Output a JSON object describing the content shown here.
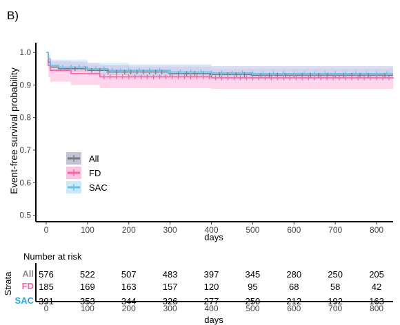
{
  "panel_label": "B)",
  "chart_data": {
    "type": "line",
    "subtype": "kaplan-meier",
    "xlabel": "days",
    "ylabel": "Event-free survival probability",
    "xlim": [
      -25,
      840
    ],
    "ylim": [
      0.48,
      1.03
    ],
    "xticks": [
      0,
      100,
      200,
      300,
      400,
      500,
      600,
      700,
      800
    ],
    "yticks": [
      0.5,
      0.6,
      0.7,
      0.8,
      0.9,
      1.0
    ],
    "ytick_labels": [
      "0.5",
      "0.6",
      "0.7",
      "0.8",
      "0.9",
      "1.0"
    ],
    "grid": false,
    "legend_position": "center-left",
    "series": [
      {
        "name": "All",
        "color": "#7a7a7a",
        "band_color": "#b4b4cc",
        "points": [
          [
            0,
            1.0
          ],
          [
            5,
            0.97
          ],
          [
            10,
            0.955
          ],
          [
            30,
            0.95
          ],
          [
            100,
            0.945
          ],
          [
            150,
            0.94
          ],
          [
            300,
            0.935
          ],
          [
            400,
            0.932
          ],
          [
            500,
            0.93
          ],
          [
            840,
            0.93
          ]
        ],
        "ci_low": [
          [
            0,
            1.0
          ],
          [
            5,
            0.955
          ],
          [
            10,
            0.94
          ],
          [
            100,
            0.93
          ],
          [
            200,
            0.925
          ],
          [
            400,
            0.92
          ],
          [
            840,
            0.918
          ]
        ],
        "ci_high": [
          [
            0,
            1.0
          ],
          [
            5,
            0.985
          ],
          [
            10,
            0.972
          ],
          [
            100,
            0.962
          ],
          [
            200,
            0.956
          ],
          [
            400,
            0.95
          ],
          [
            840,
            0.945
          ]
        ],
        "censor_x": [
          70,
          95,
          110,
          130,
          150,
          170,
          190,
          205,
          220,
          235,
          250,
          265,
          280,
          300,
          320,
          340,
          360,
          380,
          400,
          420,
          440,
          460,
          480,
          500,
          520,
          540,
          560,
          580,
          600,
          620,
          640,
          660,
          680,
          700,
          720,
          740,
          760,
          780,
          800,
          820
        ]
      },
      {
        "name": "FD",
        "color": "#ff5fa6",
        "band_color": "#ffb3dc",
        "points": [
          [
            0,
            1.0
          ],
          [
            5,
            0.96
          ],
          [
            10,
            0.945
          ],
          [
            60,
            0.935
          ],
          [
            130,
            0.925
          ],
          [
            400,
            0.922
          ],
          [
            840,
            0.92
          ]
        ],
        "ci_low": [
          [
            0,
            1.0
          ],
          [
            5,
            0.925
          ],
          [
            10,
            0.91
          ],
          [
            60,
            0.9
          ],
          [
            130,
            0.89
          ],
          [
            400,
            0.888
          ],
          [
            840,
            0.885
          ]
        ],
        "ci_high": [
          [
            0,
            1.0
          ],
          [
            5,
            0.99
          ],
          [
            10,
            0.975
          ],
          [
            60,
            0.968
          ],
          [
            130,
            0.96
          ],
          [
            400,
            0.958
          ],
          [
            840,
            0.955
          ]
        ],
        "censor_x": [
          140,
          155,
          170,
          185,
          200,
          215,
          230,
          245,
          260,
          275,
          290,
          305,
          320,
          335,
          350,
          365,
          380,
          395,
          410,
          425,
          440,
          455,
          470,
          485,
          500,
          515,
          530,
          545,
          560,
          575,
          590,
          605,
          620,
          635,
          650,
          665,
          680,
          695,
          710,
          725,
          740,
          755,
          770,
          785,
          800,
          815,
          830
        ]
      },
      {
        "name": "SAC",
        "color": "#66c0ee",
        "band_color": "#bde3f7",
        "points": [
          [
            0,
            1.0
          ],
          [
            5,
            0.98
          ],
          [
            10,
            0.96
          ],
          [
            30,
            0.955
          ],
          [
            100,
            0.95
          ],
          [
            150,
            0.945
          ],
          [
            300,
            0.94
          ],
          [
            400,
            0.937
          ],
          [
            500,
            0.935
          ],
          [
            840,
            0.935
          ]
        ],
        "ci_low": [
          [
            0,
            1.0
          ],
          [
            5,
            0.965
          ],
          [
            10,
            0.945
          ],
          [
            100,
            0.935
          ],
          [
            200,
            0.93
          ],
          [
            400,
            0.925
          ],
          [
            840,
            0.922
          ]
        ],
        "ci_high": [
          [
            0,
            1.0
          ],
          [
            5,
            0.995
          ],
          [
            10,
            0.978
          ],
          [
            100,
            0.968
          ],
          [
            200,
            0.964
          ],
          [
            400,
            0.958
          ],
          [
            840,
            0.955
          ]
        ],
        "censor_x": [
          40,
          60,
          80,
          100,
          120,
          140,
          160,
          180,
          200,
          225,
          250,
          275,
          300,
          325,
          350,
          375,
          400,
          425,
          450,
          475,
          500,
          525,
          550,
          575,
          600,
          625,
          650,
          675,
          700,
          725,
          750,
          775,
          800,
          825
        ]
      }
    ]
  },
  "risk_table": {
    "title": "Number at risk",
    "strata_label": "Strata",
    "xlabel": "days",
    "times": [
      0,
      100,
      200,
      300,
      400,
      500,
      600,
      700,
      800
    ],
    "time_labels": [
      "0",
      "100",
      "200",
      "300",
      "400",
      "500",
      "600",
      "700",
      "800"
    ],
    "rows": [
      {
        "label": "All",
        "color": "#8c8c8c",
        "values": [
          "576",
          "522",
          "507",
          "483",
          "397",
          "345",
          "280",
          "250",
          "205"
        ]
      },
      {
        "label": "FD",
        "color": "#ff5fa6",
        "values": [
          "185",
          "169",
          "163",
          "157",
          "120",
          "95",
          "68",
          "58",
          "42"
        ]
      },
      {
        "label": "SAC",
        "color": "#29a8e0",
        "values": [
          "391",
          "353",
          "344",
          "326",
          "277",
          "250",
          "212",
          "192",
          "163"
        ]
      }
    ]
  }
}
